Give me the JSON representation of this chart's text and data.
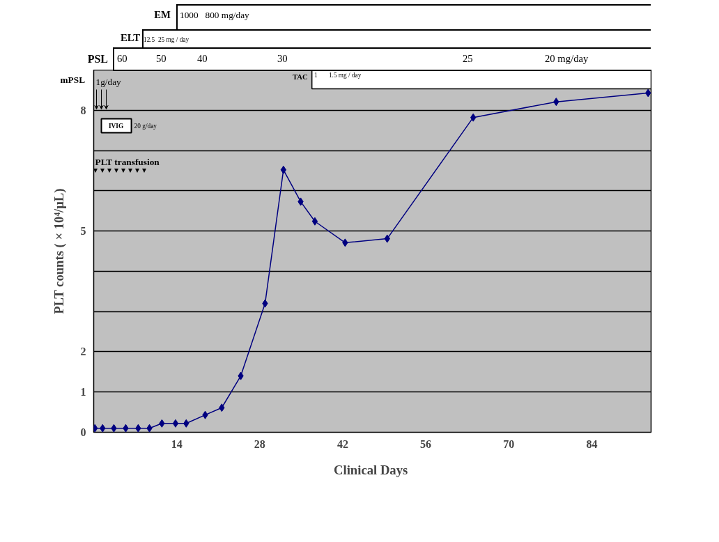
{
  "chart_data": {
    "type": "line",
    "xlabel": "Clinical  Days",
    "ylabel": "PLT counts ( × 10⁴/μL)",
    "x": [
      0.2,
      1.5,
      3.4,
      5.4,
      7.5,
      9.4,
      11.5,
      13.8,
      15.6,
      18.8,
      21.6,
      24.8,
      28.9,
      32.0,
      34.9,
      37.3,
      42.4,
      49.5,
      64.0,
      78.0,
      93.5
    ],
    "values": [
      0.1,
      0.1,
      0.1,
      0.1,
      0.1,
      0.1,
      0.22,
      0.22,
      0.22,
      0.43,
      0.61,
      1.4,
      3.2,
      6.52,
      5.73,
      5.24,
      4.71,
      4.81,
      7.82,
      8.21,
      8.43
    ],
    "color": "#000080",
    "marker": "diamond",
    "line_style": "solid",
    "grid": "y",
    "xlim": [
      0,
      94
    ],
    "ylim": [
      0,
      9
    ],
    "xticks": [
      14,
      28,
      42,
      56,
      70,
      84
    ],
    "yticks": [
      0,
      1,
      2,
      {
        "value": 3,
        "label": null
      },
      {
        "value": 4,
        "label": null
      },
      5,
      {
        "value": 6,
        "label": null
      },
      {
        "value": 7,
        "label": null
      },
      8
    ],
    "bands": [
      {
        "axis": "x",
        "from": 36.8,
        "to": 94,
        "label": "TAC",
        "color": "#ffffff"
      }
    ],
    "annotations": [
      "EM",
      "1000   800 mg/day",
      "ELT",
      "12.5  25 mg / day",
      "PSL",
      "60",
      "50",
      "40",
      "30",
      "25",
      "20 mg/day",
      "mPSL",
      "1g/day",
      "1       1.5 mg / day",
      "IVIG",
      "20 g/day",
      "PLT transfusion"
    ]
  }
}
